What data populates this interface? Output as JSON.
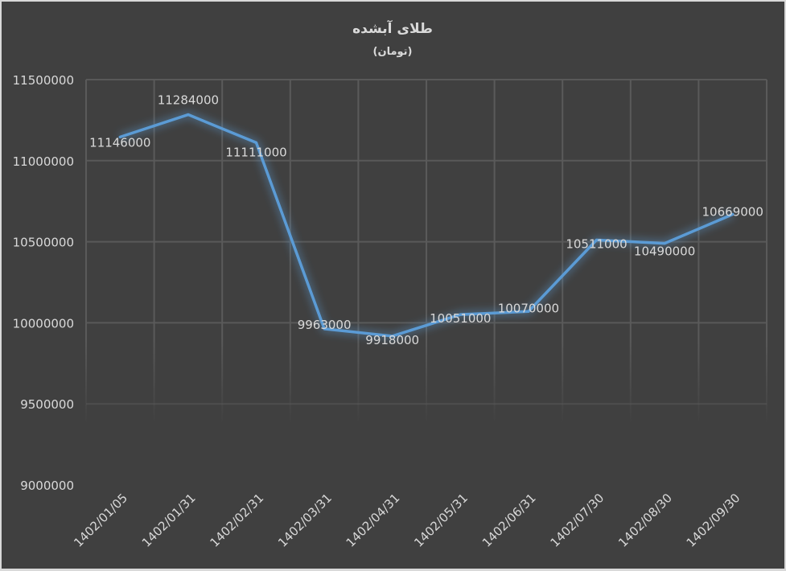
{
  "chart_data": {
    "type": "line",
    "title": "طلای آبشده",
    "subtitle": "(تومان)",
    "xlabel": "",
    "ylabel": "",
    "categories": [
      "1402/01/05",
      "1402/01/31",
      "1402/02/31",
      "1402/03/31",
      "1402/04/31",
      "1402/05/31",
      "1402/06/31",
      "1402/07/30",
      "1402/08/30",
      "1402/09/30"
    ],
    "series": [
      {
        "name": "طلای آبشده",
        "color": "#5b9bd5",
        "values": [
          11146000,
          11284000,
          11111000,
          9963000,
          9918000,
          10051000,
          10070000,
          10511000,
          10490000,
          10669000
        ]
      }
    ],
    "yticks": [
      "11500000",
      "11000000",
      "10500000",
      "10000000",
      "9500000",
      "9000000"
    ],
    "ylim": [
      9000000,
      11500000
    ],
    "grid": true,
    "legend": "none",
    "data_labels": true,
    "background": "#404040",
    "text_color": "#d9d9d9"
  }
}
